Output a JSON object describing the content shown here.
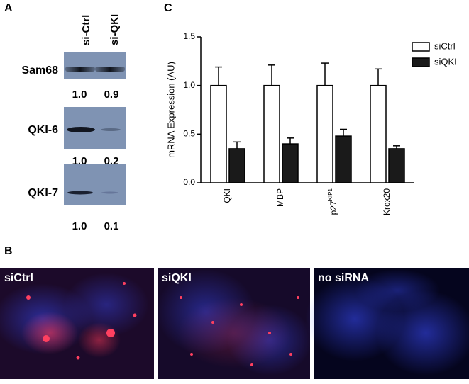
{
  "panel_a": {
    "label": "A",
    "columns": [
      "si-Ctrl",
      "si-QKI"
    ],
    "blots": [
      {
        "name": "Sam68",
        "quantification": [
          "1.0",
          "0.9"
        ]
      },
      {
        "name": "QKI-6",
        "quantification": [
          "1.0",
          "0.2"
        ]
      },
      {
        "name": "QKI-7",
        "quantification": [
          "1.0",
          "0.1"
        ]
      }
    ]
  },
  "panel_b": {
    "label": "B",
    "images": [
      "siCtrl",
      "siQKI",
      "no siRNA"
    ]
  },
  "chart_data": {
    "type": "bar",
    "panel_label": "C",
    "y_label": "mRNA Expression (AU)",
    "categories": [
      "QKI",
      "MBP",
      "p27",
      "Krox20"
    ],
    "category_superscripts": [
      null,
      null,
      "KIP1",
      null
    ],
    "series": [
      {
        "name": "siCtrl",
        "color": "#ffffff",
        "values": [
          1.0,
          1.0,
          1.0,
          1.0
        ],
        "errors": [
          0.19,
          0.21,
          0.23,
          0.17
        ]
      },
      {
        "name": "siQKI",
        "color": "#1a1a1a",
        "values": [
          0.35,
          0.4,
          0.48,
          0.35
        ],
        "errors": [
          0.07,
          0.06,
          0.07,
          0.03
        ]
      }
    ],
    "ylim": [
      0,
      1.5
    ],
    "yticks": [
      {
        "value": 0,
        "label": "0.0"
      },
      {
        "value": 0.5,
        "label": "0.5"
      },
      {
        "value": 1,
        "label": "1.0"
      },
      {
        "value": 1.5,
        "label": "1.5"
      }
    ],
    "legend": "top-right"
  }
}
